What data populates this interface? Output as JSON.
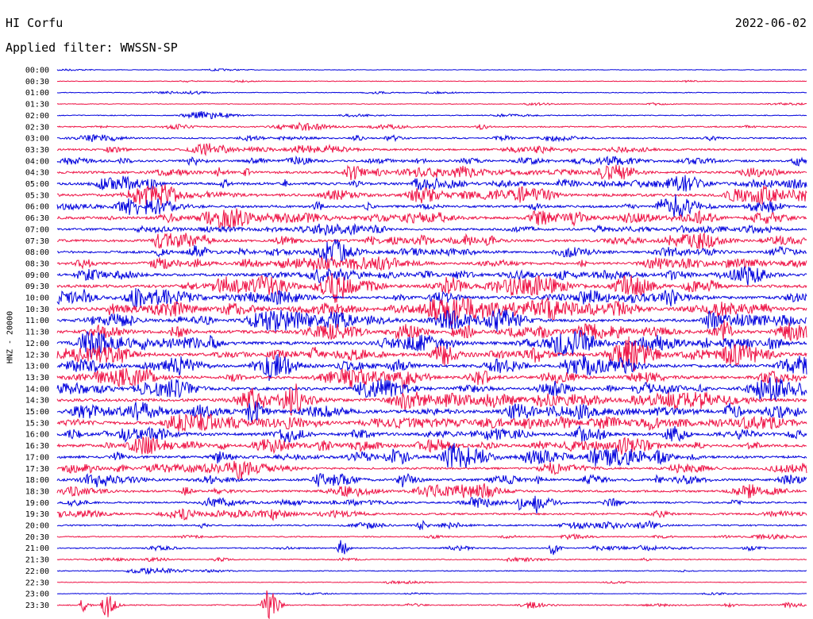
{
  "header": {
    "station": "HI Corfu",
    "date": "2022-06-02",
    "filter_label": "Applied filter:",
    "filter_value": "WWSSN-SP"
  },
  "chart_data": {
    "type": "line",
    "title": "HI Corfu",
    "ylabel": "HNZ - 20000",
    "row_labels": [
      "00:00",
      "00:30",
      "01:00",
      "01:30",
      "02:00",
      "02:30",
      "03:00",
      "03:30",
      "04:00",
      "04:30",
      "05:00",
      "05:30",
      "06:00",
      "06:30",
      "07:00",
      "07:30",
      "08:00",
      "08:30",
      "09:00",
      "09:30",
      "10:00",
      "10:30",
      "11:00",
      "11:30",
      "12:00",
      "12:30",
      "13:00",
      "13:30",
      "14:00",
      "14:30",
      "15:00",
      "15:30",
      "16:00",
      "16:30",
      "17:00",
      "17:30",
      "18:00",
      "18:30",
      "19:00",
      "19:30",
      "20:00",
      "20:30",
      "21:00",
      "21:30",
      "22:00",
      "22:30",
      "23:00",
      "23:30"
    ],
    "colors": [
      "#0000dd",
      "#ee1144"
    ],
    "activity": [
      0.05,
      0.07,
      0.12,
      0.08,
      0.18,
      0.32,
      0.38,
      0.52,
      0.6,
      0.68,
      0.78,
      0.82,
      0.72,
      0.82,
      0.6,
      0.72,
      0.72,
      0.8,
      0.8,
      0.9,
      0.85,
      0.98,
      0.92,
      0.97,
      0.98,
      0.95,
      0.9,
      0.85,
      0.88,
      0.95,
      0.96,
      0.9,
      0.92,
      0.9,
      0.82,
      0.62,
      0.72,
      0.6,
      0.48,
      0.52,
      0.4,
      0.25,
      0.28,
      0.22,
      0.18,
      0.08,
      0.08,
      0.25
    ]
  }
}
